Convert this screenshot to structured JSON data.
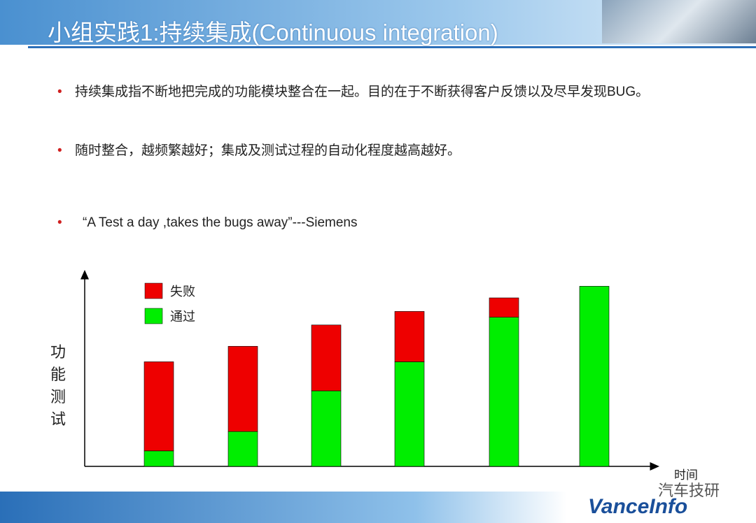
{
  "header": {
    "title": "小组实践1:持续集成(Continuous integration)"
  },
  "bullets": [
    "持续集成指不断地把完成的功能模块整合在一起。目的在于不断获得客户反馈以及尽早发现BUG。",
    "随时整合，越频繁越好；集成及测试过程的自动化程度越高越好。",
    "“A Test a day ,takes the bugs away”---Siemens"
  ],
  "chart_data": {
    "type": "stacked-bar",
    "y_label": "功能测试",
    "x_label": "时间",
    "categories": [
      null,
      null,
      null,
      null,
      null,
      null
    ],
    "series": [
      {
        "name": "通过",
        "color": "#00ee00",
        "values": [
          8,
          18,
          39,
          54,
          77,
          93
        ]
      },
      {
        "name": "失败",
        "color": "#ee0000",
        "values": [
          46,
          44,
          34,
          26,
          10,
          0
        ]
      }
    ],
    "ylim": [
      0,
      100
    ]
  },
  "footer": {
    "watermark": "汽车技研",
    "logo": "VanceInfo"
  }
}
